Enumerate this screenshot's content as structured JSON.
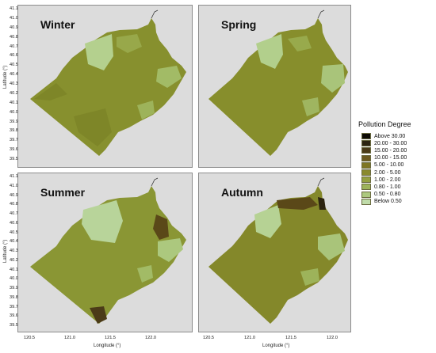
{
  "panels": [
    {
      "name": "Winter"
    },
    {
      "name": "Spring"
    },
    {
      "name": "Summer"
    },
    {
      "name": "Autumn"
    }
  ],
  "axes": {
    "y_label": "Latitude (°)",
    "x_label": "Longitude (°)",
    "y_ticks": [
      "41.1",
      "41.0",
      "40.9",
      "40.8",
      "40.7",
      "40.6",
      "40.5",
      "40.4",
      "40.3",
      "40.2",
      "40.1",
      "40.0",
      "39.9",
      "39.8",
      "39.7",
      "39.6",
      "39.5"
    ],
    "x_ticks": [
      "120.5",
      "121.0",
      "121.5",
      "122.0"
    ]
  },
  "legend": {
    "title": "Pollution Degree",
    "items": [
      {
        "label": "Above  30.00",
        "color": "#0d0b05"
      },
      {
        "label": "20.00 - 30.00",
        "color": "#2c2410"
      },
      {
        "label": "15.00 - 20.00",
        "color": "#4b3b18"
      },
      {
        "label": "10.00 - 15.00",
        "color": "#6c5a20"
      },
      {
        "label": "5.00 - 10.00",
        "color": "#7e7624"
      },
      {
        "label": "2.00 -  5.00",
        "color": "#8a8a2e"
      },
      {
        "label": "1.00 -  2.00",
        "color": "#94a040"
      },
      {
        "label": "0.80 -  1.00",
        "color": "#9db35a"
      },
      {
        "label": "0.50 -  0.80",
        "color": "#acc87e"
      },
      {
        "label": "Below   0.50",
        "color": "#c0dcaa"
      }
    ]
  }
}
